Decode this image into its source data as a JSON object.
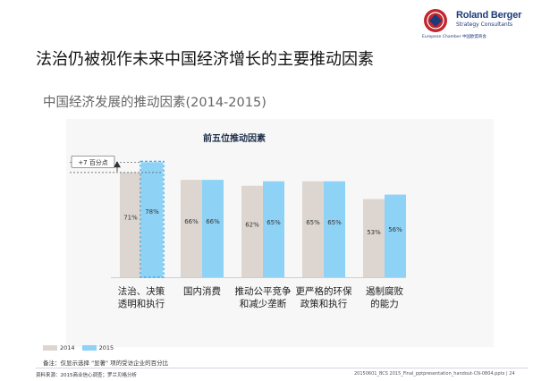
{
  "logo": {
    "brand": "Roland Berger",
    "tagline": "Strategy Consultants",
    "chamber": "European Chamber 中国欧盟商会"
  },
  "page": {
    "title": "法治仍被视作未来中国经济增长的主要推动因素",
    "subtitle": "中国经济发展的推动因素(2014-2015)"
  },
  "chart_data": {
    "type": "bar",
    "title": "前五位推动因素",
    "categories": [
      [
        "法治、决策",
        "透明和执行"
      ],
      [
        "国内消费"
      ],
      [
        "推动公平竞争",
        "和减少垄断"
      ],
      [
        "更严格的环保",
        "政策和执行"
      ],
      [
        "遏制腐败",
        "的能力"
      ]
    ],
    "series": [
      {
        "name": "2014",
        "values": [
          71,
          66,
          62,
          65,
          53
        ],
        "labels": [
          "71%",
          "66%",
          "62%",
          "65%",
          "53%"
        ],
        "color": "#ddd6d0"
      },
      {
        "name": "2015",
        "values": [
          78,
          66,
          65,
          65,
          56
        ],
        "labels": [
          "78%",
          "66%",
          "65%",
          "65%",
          "56%"
        ],
        "color": "#8ed3f6"
      }
    ],
    "ylim": [
      0,
      80
    ],
    "annotation": {
      "text": "+7 百分点",
      "category_index": 0
    },
    "highlight_index": 0,
    "grid": false,
    "legend_position": "bottom-left"
  },
  "notes": {
    "note": "备注：仅显示选择 \"显著\" 项的受访企业的百分比",
    "source": "资料来源：2015商业信心调查；罗兰贝格分析",
    "fileref": "20150601_BCS 2015_Final_pptpresentation_handout-CN-0804.pptx  |  24"
  },
  "colors": {
    "accent_2015": "#8ed3f6",
    "base_2014": "#ddd6d0",
    "emblem": "#c0282e"
  }
}
